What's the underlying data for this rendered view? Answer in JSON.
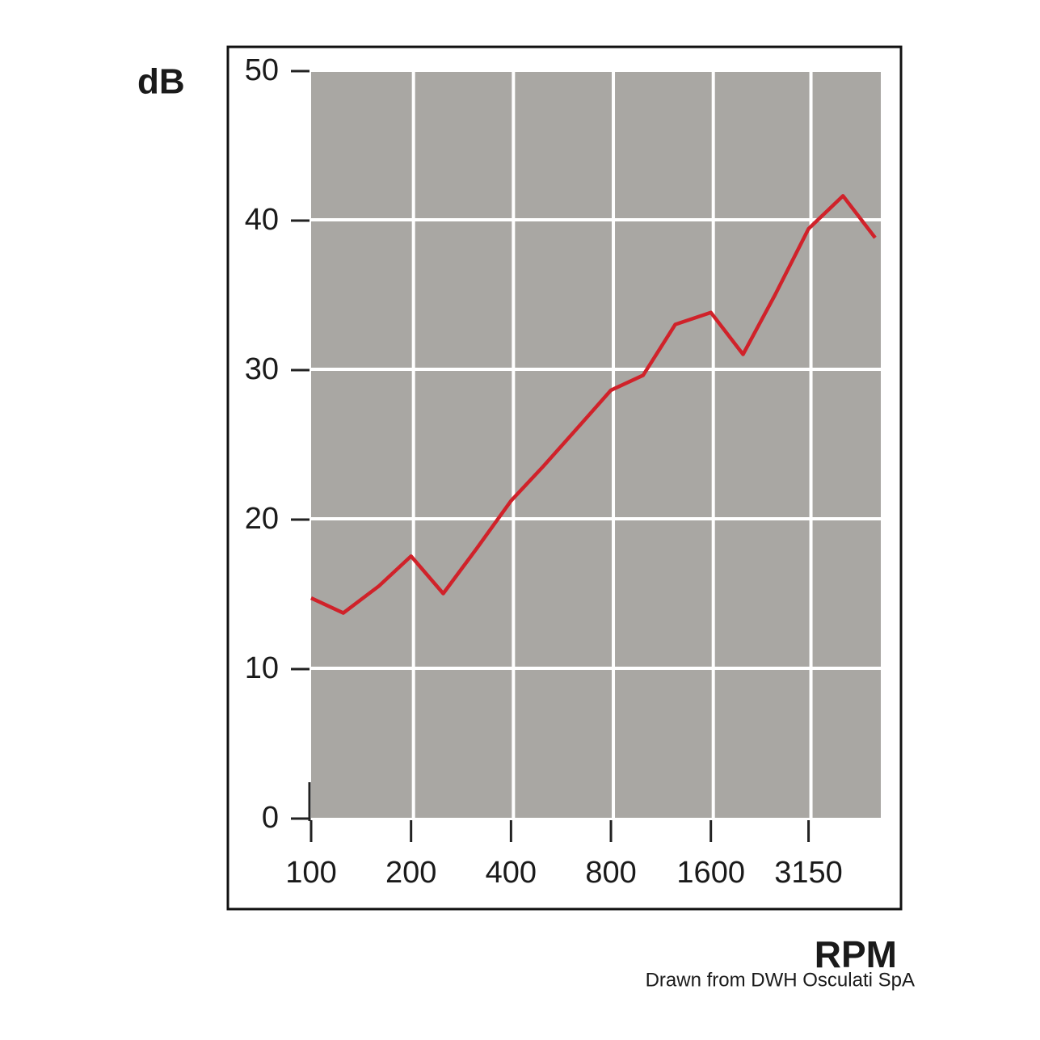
{
  "chart_data": {
    "type": "line",
    "y_label": "dB",
    "x_label": "RPM",
    "source": "Drawn from DWH Osculati SpA",
    "x": [
      100,
      125,
      160,
      200,
      250,
      315,
      400,
      500,
      630,
      800,
      1000,
      1250,
      1600,
      2000,
      2500,
      3150,
      4000,
      5000
    ],
    "series": [
      {
        "color": "#d0222a",
        "values": [
          14.7,
          13.7,
          15.5,
          17.5,
          15.0,
          18.0,
          21.2,
          23.5,
          26.0,
          28.6,
          29.6,
          33.0,
          33.8,
          31.0,
          35.0,
          39.4,
          41.6,
          38.8
        ]
      }
    ],
    "xlim": [
      100,
      5200
    ],
    "xticks": [
      100,
      200,
      400,
      800,
      1600,
      3150
    ],
    "xscale": "log",
    "ylim": [
      0,
      50
    ],
    "yticks": [
      0,
      10,
      20,
      30,
      40,
      50
    ],
    "grid": true,
    "background": "#a9a7a3"
  }
}
